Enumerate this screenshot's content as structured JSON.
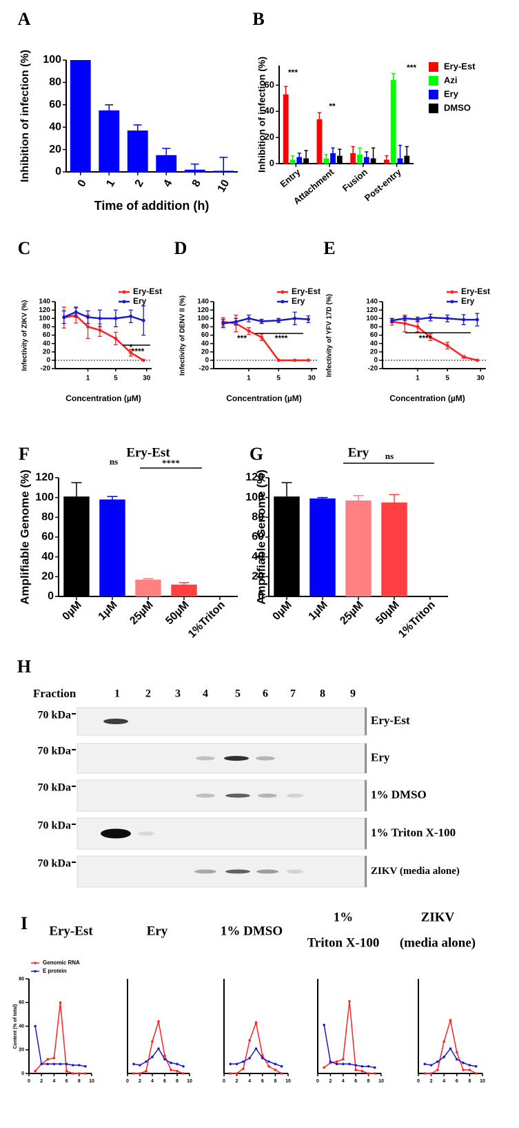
{
  "chart_data": [
    {
      "type": "bar",
      "panel": "A",
      "ylabel": "Inhibition of infection (%)",
      "xlabel": "Time of addition (h)",
      "categories": [
        "0",
        "1",
        "2",
        "4",
        "8",
        "10"
      ],
      "values": [
        100,
        55,
        37,
        15,
        2,
        1
      ],
      "errors": [
        0,
        5,
        5,
        6,
        5,
        12
      ],
      "color": "#0000ff",
      "ylim": [
        0,
        100
      ],
      "yticks": [
        0,
        20,
        40,
        60,
        80,
        100
      ]
    },
    {
      "type": "bar",
      "panel": "B",
      "ylabel": "Inhibition of infection (%)",
      "categories": [
        "Entry",
        "Attachment",
        "Fusion",
        "Post-entry"
      ],
      "series": [
        {
          "name": "Ery-Est",
          "color": "#ff0000",
          "values": [
            53,
            34,
            8,
            3
          ],
          "errors": [
            6,
            5,
            5,
            3
          ]
        },
        {
          "name": "Azi",
          "color": "#00ff00",
          "values": [
            3,
            4,
            7,
            64
          ],
          "errors": [
            3,
            3,
            5,
            5
          ]
        },
        {
          "name": "Ery",
          "color": "#0000ff",
          "values": [
            5,
            8,
            5,
            4
          ],
          "errors": [
            3,
            4,
            4,
            10
          ]
        },
        {
          "name": "DMSO",
          "color": "#000000",
          "values": [
            4,
            6,
            4,
            6
          ],
          "errors": [
            6,
            5,
            8,
            7
          ]
        }
      ],
      "annotations": [
        "***",
        "**",
        "***"
      ],
      "ylim": [
        0,
        75
      ],
      "yticks": [
        0,
        20,
        40,
        60
      ]
    },
    {
      "type": "line",
      "panel": "C",
      "ylabel": "Infectivity of ZIKV (%)",
      "xlabel": "Concentration (µM)",
      "xscale": "log",
      "x": [
        0.25,
        0.5,
        1,
        2,
        5,
        12,
        25
      ],
      "series": [
        {
          "name": "Ery-Est",
          "color": "#ff2020",
          "values": [
            102,
            107,
            80,
            72,
            52,
            18,
            0
          ],
          "errors": [
            25,
            18,
            28,
            15,
            15,
            8,
            0
          ]
        },
        {
          "name": "Ery",
          "color": "#1a1acc",
          "values": [
            103,
            115,
            103,
            100,
            100,
            105,
            95
          ],
          "errors": [
            15,
            12,
            15,
            20,
            20,
            15,
            35
          ]
        }
      ],
      "annotations": [
        "*",
        "****"
      ],
      "xlim": [
        0.15,
        40
      ],
      "xticks": [
        1,
        5,
        30
      ],
      "ylim": [
        -20,
        140
      ],
      "yticks": [
        -20,
        0,
        20,
        40,
        60,
        80,
        100,
        120,
        140
      ]
    },
    {
      "type": "line",
      "panel": "D",
      "ylabel": "Infectivity of DENV II (%)",
      "xlabel": "Concentration (µM)",
      "xscale": "log",
      "x": [
        0.25,
        0.5,
        1,
        2,
        5,
        12,
        25
      ],
      "series": [
        {
          "name": "Ery-Est",
          "color": "#ff2020",
          "values": [
            92,
            88,
            70,
            55,
            0,
            0,
            0
          ],
          "errors": [
            10,
            20,
            8,
            8,
            0,
            0,
            0
          ]
        },
        {
          "name": "Ery",
          "color": "#1a1acc",
          "values": [
            88,
            92,
            100,
            93,
            95,
            100,
            98
          ],
          "errors": [
            10,
            8,
            8,
            5,
            5,
            15,
            8
          ]
        }
      ],
      "annotations": [
        "***",
        "****"
      ],
      "xlim": [
        0.15,
        40
      ],
      "xticks": [
        1,
        5,
        30
      ],
      "ylim": [
        -20,
        140
      ],
      "yticks": [
        -20,
        0,
        20,
        40,
        60,
        80,
        100,
        120,
        140
      ]
    },
    {
      "type": "line",
      "panel": "E",
      "ylabel": "Infectivity of YFV 17D (%)",
      "xlabel": "Concentration (µM)",
      "xscale": "log",
      "x": [
        0.25,
        0.5,
        1,
        2,
        5,
        12,
        25
      ],
      "series": [
        {
          "name": "Ery-Est",
          "color": "#ff2020",
          "values": [
            92,
            88,
            80,
            55,
            35,
            8,
            0
          ],
          "errors": [
            8,
            20,
            12,
            8,
            8,
            3,
            0
          ]
        },
        {
          "name": "Ery",
          "color": "#1a1acc",
          "values": [
            95,
            100,
            98,
            102,
            100,
            97,
            97
          ],
          "errors": [
            5,
            5,
            5,
            8,
            8,
            12,
            15
          ]
        }
      ],
      "annotations": [
        "****"
      ],
      "xlim": [
        0.15,
        40
      ],
      "xticks": [
        1,
        5,
        30
      ],
      "ylim": [
        -20,
        140
      ],
      "yticks": [
        -20,
        0,
        20,
        40,
        60,
        80,
        100,
        120,
        140
      ]
    },
    {
      "type": "bar",
      "panel": "F",
      "title": "Ery-Est",
      "ylabel": "Amplifiable Genome (%)",
      "categories": [
        "0µM",
        "1µM",
        "25µM",
        "50µM",
        "1%Triton"
      ],
      "values": [
        101,
        98,
        17,
        12,
        0
      ],
      "errors": [
        14,
        3,
        1,
        2,
        0
      ],
      "colors": [
        "#000000",
        "#0000ff",
        "#ff8080",
        "#ff4040",
        "#ff4040"
      ],
      "annotations": [
        "ns",
        "****"
      ],
      "ylim": [
        0,
        120
      ],
      "yticks": [
        0,
        20,
        40,
        60,
        80,
        100,
        120
      ]
    },
    {
      "type": "bar",
      "panel": "G",
      "title": "Ery",
      "ylabel": "Amplifiable Genome (%)",
      "categories": [
        "0µM",
        "1µM",
        "25µM",
        "50µM",
        "1%Triton"
      ],
      "values": [
        101,
        99,
        97,
        95,
        0
      ],
      "errors": [
        14,
        1,
        5,
        8,
        0
      ],
      "colors": [
        "#000000",
        "#0000ff",
        "#ff8080",
        "#ff4040",
        "#ff4040"
      ],
      "annotations": [
        "ns"
      ],
      "ylim": [
        0,
        120
      ],
      "yticks": [
        0,
        20,
        40,
        60,
        80,
        100,
        120
      ]
    },
    {
      "type": "line",
      "panel": "I",
      "title": [
        "Ery-Est"
      ],
      "ylabel": "Content (% of total)",
      "x": [
        1,
        2,
        3,
        4,
        5,
        6,
        7,
        8,
        9
      ],
      "series": [
        {
          "name": "Genomic RNA",
          "color": "#ff2020",
          "values": [
            2,
            8,
            12,
            13,
            60,
            2,
            0,
            0,
            0
          ]
        },
        {
          "name": "E protein",
          "color": "#1a1acc",
          "values": [
            40,
            8,
            8,
            8,
            8,
            8,
            7,
            7,
            6
          ]
        }
      ],
      "xlim": [
        0,
        10
      ],
      "xticks": [
        0,
        2,
        4,
        6,
        8,
        10
      ],
      "ylim": [
        0,
        80
      ],
      "yticks": [
        0,
        20,
        40,
        60,
        80
      ]
    },
    {
      "type": "line",
      "title": [
        "Ery"
      ],
      "x": [
        1,
        2,
        3,
        4,
        5,
        6,
        7,
        8,
        9
      ],
      "series": [
        {
          "color": "#ff2020",
          "values": [
            0,
            0,
            2,
            27,
            44,
            15,
            3,
            2,
            0
          ]
        },
        {
          "color": "#1a1acc",
          "values": [
            8,
            7,
            10,
            14,
            21,
            12,
            9,
            8,
            6
          ]
        }
      ],
      "xlim": [
        0,
        10
      ],
      "xticks": [
        0,
        2,
        4,
        6,
        8,
        10
      ],
      "ylim": [
        0,
        80
      ]
    },
    {
      "type": "line",
      "title": [
        "1% DMSO"
      ],
      "x": [
        1,
        2,
        3,
        4,
        5,
        6,
        7,
        8,
        9
      ],
      "series": [
        {
          "color": "#ff2020",
          "values": [
            0,
            0,
            4,
            28,
            43,
            15,
            6,
            3,
            0
          ]
        },
        {
          "color": "#1a1acc",
          "values": [
            8,
            8,
            10,
            13,
            21,
            13,
            10,
            8,
            6
          ]
        }
      ],
      "xlim": [
        0,
        10
      ],
      "xticks": [
        0,
        2,
        4,
        6,
        8,
        10
      ],
      "ylim": [
        0,
        80
      ]
    },
    {
      "type": "line",
      "title": [
        "1%",
        "Triton X-100"
      ],
      "x": [
        1,
        2,
        3,
        4,
        5,
        6,
        7,
        8,
        9
      ],
      "series": [
        {
          "color": "#ff2020",
          "values": [
            5,
            9,
            10,
            12,
            61,
            3,
            2,
            0,
            0
          ]
        },
        {
          "color": "#1a1acc",
          "values": [
            41,
            10,
            8,
            8,
            8,
            7,
            6,
            6,
            5
          ]
        }
      ],
      "xlim": [
        0,
        10
      ],
      "xticks": [
        0,
        2,
        4,
        6,
        8,
        10
      ],
      "ylim": [
        0,
        80
      ]
    },
    {
      "type": "line",
      "title": [
        "ZIKV",
        "(media alone)"
      ],
      "x": [
        1,
        2,
        3,
        4,
        5,
        6,
        7,
        8,
        9
      ],
      "series": [
        {
          "color": "#ff2020",
          "values": [
            0,
            0,
            3,
            27,
            45,
            18,
            3,
            3,
            0
          ]
        },
        {
          "color": "#1a1acc",
          "values": [
            8,
            7,
            10,
            14,
            21,
            12,
            9,
            7,
            6
          ]
        }
      ],
      "xlim": [
        0,
        10
      ],
      "xticks": [
        0,
        2,
        4,
        6,
        8,
        10
      ],
      "ylim": [
        0,
        80
      ]
    }
  ],
  "blot": {
    "panel": "H",
    "fraction_label": "Fraction",
    "fractions": [
      "1",
      "2",
      "3",
      "4",
      "5",
      "6",
      "7",
      "8",
      "9"
    ],
    "rows": [
      {
        "marker": "70 kDa",
        "label": "Ery-Est"
      },
      {
        "marker": "70 kDa",
        "label": "Ery"
      },
      {
        "marker": "70 kDa",
        "label": "1% DMSO"
      },
      {
        "marker": "70 kDa",
        "label": "1% Triton X-100"
      },
      {
        "marker": "70 kDa",
        "label": "ZIKV (media alone)"
      }
    ]
  }
}
